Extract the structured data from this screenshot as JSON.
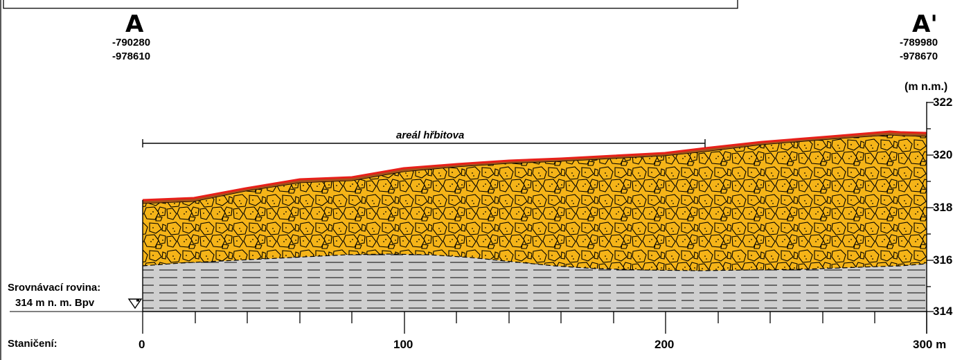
{
  "points": {
    "start": {
      "letter": "A",
      "coord_x": "-790280",
      "coord_y": "-978610"
    },
    "end": {
      "letter": "A'",
      "coord_x": "-789980",
      "coord_y": "-978670"
    }
  },
  "axis": {
    "unit_label": "(m n.m.)",
    "elevation_ticks": [
      "322",
      "320",
      "318",
      "316",
      "314"
    ],
    "station_ticks": [
      "0",
      "100",
      "200",
      "300 m"
    ]
  },
  "labels": {
    "zone": "areál hřbitova",
    "datum_line1": "Srovnávací rovina:",
    "datum_line2": "314 m n. m. Bpv",
    "stationing": "Staničení:"
  },
  "colors": {
    "gravel_fill": "#f5b418",
    "clay_fill": "#cfcfcf",
    "surface_line": "#e8201a",
    "fill_layer": "#a3521a"
  }
}
